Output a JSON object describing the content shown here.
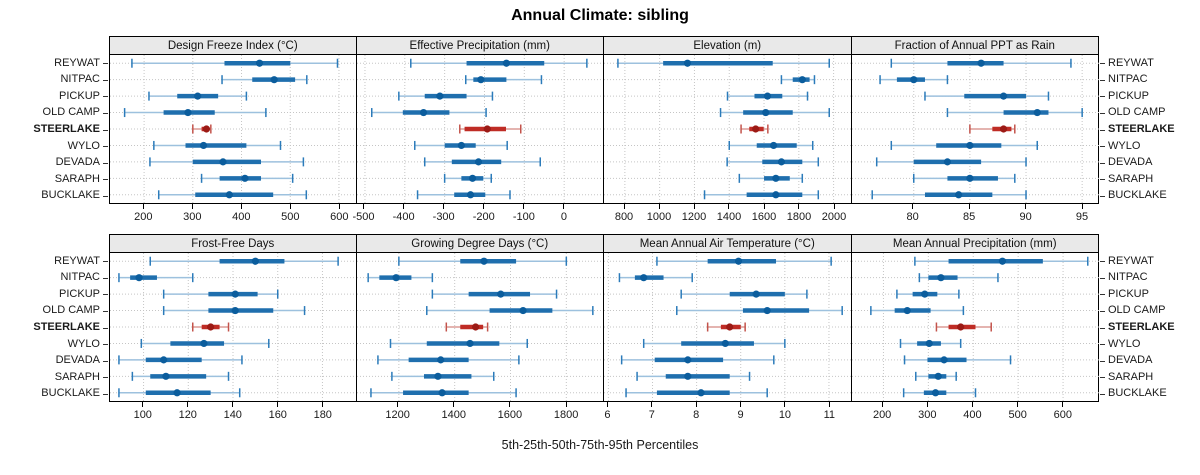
{
  "title": "Annual Climate: sibling",
  "caption": "5th-25th-50th-75th-95th Percentiles",
  "stations": [
    "REYWAT",
    "NITPAC",
    "PICKUP",
    "OLD CAMP",
    "STEERLAKE",
    "WYLO",
    "DEVADA",
    "SARAPH",
    "BUCKLAKE"
  ],
  "highlight_station": "STEERLAKE",
  "percentiles": [
    "5th",
    "25th",
    "50th",
    "75th",
    "95th"
  ],
  "colors": {
    "blue_line": "#9dc1de",
    "blue_cap": "#2b7bba",
    "blue_bar": "#1f6fae",
    "blue_dot": "#0b5d9d",
    "red_line": "#dc9b95",
    "red_cap": "#c3534b",
    "red_bar": "#bf2c25",
    "red_dot": "#9c1a15",
    "strip_bg": "#e9e9e9",
    "grid": "#c5c5c5",
    "border": "#000000"
  },
  "chart_data": [
    {
      "type": "interval",
      "title": "Design Freeze Index (°C)",
      "xlim": [
        130,
        635
      ],
      "ticks": [
        200,
        300,
        400,
        500,
        600
      ],
      "series": [
        {
          "station": "REYWAT",
          "values": [
            175,
            365,
            437,
            500,
            597
          ]
        },
        {
          "station": "NITPAC",
          "values": [
            360,
            422,
            467,
            510,
            534
          ]
        },
        {
          "station": "PICKUP",
          "values": [
            210,
            268,
            310,
            352,
            410
          ]
        },
        {
          "station": "OLD CAMP",
          "values": [
            160,
            240,
            290,
            345,
            450
          ]
        },
        {
          "station": "STEERLAKE",
          "values": [
            300,
            318,
            328,
            333,
            337
          ]
        },
        {
          "station": "WYLO",
          "values": [
            220,
            285,
            322,
            410,
            480
          ]
        },
        {
          "station": "DEVADA",
          "values": [
            212,
            300,
            362,
            440,
            527
          ]
        },
        {
          "station": "SARAPH",
          "values": [
            318,
            355,
            407,
            440,
            505
          ]
        },
        {
          "station": "BUCKLAKE",
          "values": [
            230,
            305,
            375,
            465,
            533
          ]
        }
      ]
    },
    {
      "type": "interval",
      "title": "Effective Precipitation (mm)",
      "xlim": [
        -520,
        100
      ],
      "ticks": [
        -500,
        -400,
        -300,
        -200,
        -100,
        0
      ],
      "series": [
        {
          "station": "REYWAT",
          "values": [
            -385,
            -245,
            -145,
            -50,
            57
          ]
        },
        {
          "station": "NITPAC",
          "values": [
            -247,
            -228,
            -209,
            -145,
            -57
          ]
        },
        {
          "station": "PICKUP",
          "values": [
            -415,
            -350,
            -312,
            -245,
            -180
          ]
        },
        {
          "station": "OLD CAMP",
          "values": [
            -483,
            -405,
            -353,
            -288,
            -196
          ]
        },
        {
          "station": "STEERLAKE",
          "values": [
            -262,
            -250,
            -193,
            -146,
            -109
          ]
        },
        {
          "station": "WYLO",
          "values": [
            -375,
            -300,
            -258,
            -222,
            -143
          ]
        },
        {
          "station": "DEVADA",
          "values": [
            -350,
            -282,
            -215,
            -158,
            -60
          ]
        },
        {
          "station": "SARAPH",
          "values": [
            -300,
            -258,
            -230,
            -203,
            -183
          ]
        },
        {
          "station": "BUCKLAKE",
          "values": [
            -368,
            -276,
            -235,
            -198,
            -136
          ]
        }
      ]
    },
    {
      "type": "interval",
      "title": "Elevation (m)",
      "xlim": [
        680,
        2100
      ],
      "ticks": [
        800,
        1000,
        1200,
        1400,
        1600,
        1800,
        2000
      ],
      "series": [
        {
          "station": "REYWAT",
          "values": [
            760,
            1020,
            1160,
            1650,
            1975
          ]
        },
        {
          "station": "NITPAC",
          "values": [
            1700,
            1765,
            1820,
            1862,
            1890
          ]
        },
        {
          "station": "PICKUP",
          "values": [
            1390,
            1545,
            1620,
            1705,
            1850
          ]
        },
        {
          "station": "OLD CAMP",
          "values": [
            1350,
            1480,
            1610,
            1765,
            1975
          ]
        },
        {
          "station": "STEERLAKE",
          "values": [
            1468,
            1515,
            1552,
            1598,
            1622
          ]
        },
        {
          "station": "WYLO",
          "values": [
            1400,
            1558,
            1655,
            1788,
            1880
          ]
        },
        {
          "station": "DEVADA",
          "values": [
            1388,
            1590,
            1700,
            1820,
            1912
          ]
        },
        {
          "station": "SARAPH",
          "values": [
            1458,
            1600,
            1668,
            1748,
            1820
          ]
        },
        {
          "station": "BUCKLAKE",
          "values": [
            1258,
            1500,
            1668,
            1820,
            1912
          ]
        }
      ]
    },
    {
      "type": "interval",
      "title": "Fraction of Annual PPT as Rain",
      "xlim": [
        74.5,
        96.5
      ],
      "ticks": [
        80,
        85,
        90,
        95
      ],
      "series": [
        {
          "station": "REYWAT",
          "values": [
            78,
            83,
            86,
            88,
            94
          ]
        },
        {
          "station": "NITPAC",
          "values": [
            77,
            78.5,
            80,
            81,
            83
          ]
        },
        {
          "station": "PICKUP",
          "values": [
            81,
            84.5,
            88,
            90,
            92
          ]
        },
        {
          "station": "OLD CAMP",
          "values": [
            83,
            88,
            91,
            92,
            95
          ]
        },
        {
          "station": "STEERLAKE",
          "values": [
            85,
            87,
            88,
            88.7,
            89
          ]
        },
        {
          "station": "WYLO",
          "values": [
            78,
            82,
            85,
            87.8,
            91
          ]
        },
        {
          "station": "DEVADA",
          "values": [
            76.7,
            80,
            83,
            86,
            90
          ]
        },
        {
          "station": "SARAPH",
          "values": [
            80,
            83,
            85,
            87.5,
            89
          ]
        },
        {
          "station": "BUCKLAKE",
          "values": [
            76.3,
            81,
            84,
            87,
            90
          ]
        }
      ]
    },
    {
      "type": "interval",
      "title": "Frost-Free Days",
      "xlim": [
        85,
        195
      ],
      "ticks": [
        100,
        120,
        140,
        160,
        180
      ],
      "series": [
        {
          "station": "REYWAT",
          "values": [
            103,
            134,
            150,
            163,
            187
          ]
        },
        {
          "station": "NITPAC",
          "values": [
            89,
            94,
            98,
            106,
            122
          ]
        },
        {
          "station": "PICKUP",
          "values": [
            109,
            129,
            141,
            151,
            160
          ]
        },
        {
          "station": "OLD CAMP",
          "values": [
            109,
            129,
            141,
            158,
            172
          ]
        },
        {
          "station": "STEERLAKE",
          "values": [
            122,
            126,
            130,
            134,
            138
          ]
        },
        {
          "station": "WYLO",
          "values": [
            99,
            112,
            127,
            136,
            156
          ]
        },
        {
          "station": "DEVADA",
          "values": [
            89,
            101,
            109,
            126,
            144
          ]
        },
        {
          "station": "SARAPH",
          "values": [
            95,
            103,
            110,
            128,
            138
          ]
        },
        {
          "station": "BUCKLAKE",
          "values": [
            89,
            101,
            115,
            130,
            143
          ]
        }
      ]
    },
    {
      "type": "interval",
      "title": "Growing Degree Days (°C)",
      "xlim": [
        1050,
        1935
      ],
      "ticks": [
        1200,
        1400,
        1600,
        1800
      ],
      "series": [
        {
          "station": "REYWAT",
          "values": [
            1200,
            1420,
            1505,
            1620,
            1800
          ]
        },
        {
          "station": "NITPAC",
          "values": [
            1090,
            1130,
            1190,
            1245,
            1320
          ]
        },
        {
          "station": "PICKUP",
          "values": [
            1320,
            1450,
            1565,
            1670,
            1765
          ]
        },
        {
          "station": "OLD CAMP",
          "values": [
            1300,
            1525,
            1645,
            1750,
            1895
          ]
        },
        {
          "station": "STEERLAKE",
          "values": [
            1370,
            1420,
            1475,
            1502,
            1518
          ]
        },
        {
          "station": "WYLO",
          "values": [
            1170,
            1300,
            1455,
            1560,
            1660
          ]
        },
        {
          "station": "DEVADA",
          "values": [
            1125,
            1235,
            1350,
            1450,
            1630
          ]
        },
        {
          "station": "SARAPH",
          "values": [
            1175,
            1290,
            1340,
            1460,
            1540
          ]
        },
        {
          "station": "BUCKLAKE",
          "values": [
            1100,
            1215,
            1355,
            1450,
            1620
          ]
        }
      ]
    },
    {
      "type": "interval",
      "title": "Mean Annual Air Temperature (°C)",
      "xlim": [
        5.9,
        11.5
      ],
      "ticks": [
        6,
        7,
        8,
        9,
        10,
        11
      ],
      "series": [
        {
          "station": "REYWAT",
          "values": [
            7.1,
            8.25,
            8.95,
            9.8,
            11.05
          ]
        },
        {
          "station": "NITPAC",
          "values": [
            6.25,
            6.6,
            6.8,
            7.25,
            7.9
          ]
        },
        {
          "station": "PICKUP",
          "values": [
            7.65,
            8.75,
            9.35,
            10.0,
            10.5
          ]
        },
        {
          "station": "OLD CAMP",
          "values": [
            7.55,
            9.05,
            9.6,
            10.55,
            11.3
          ]
        },
        {
          "station": "STEERLAKE",
          "values": [
            8.25,
            8.55,
            8.75,
            9.0,
            9.1
          ]
        },
        {
          "station": "WYLO",
          "values": [
            6.8,
            7.65,
            8.65,
            9.3,
            10.0
          ]
        },
        {
          "station": "DEVADA",
          "values": [
            6.3,
            7.05,
            7.8,
            8.6,
            9.75
          ]
        },
        {
          "station": "SARAPH",
          "values": [
            6.65,
            7.3,
            7.8,
            8.75,
            9.2
          ]
        },
        {
          "station": "BUCKLAKE",
          "values": [
            6.4,
            7.1,
            8.1,
            8.75,
            9.6
          ]
        }
      ]
    },
    {
      "type": "interval",
      "title": "Mean Annual Precipitation (mm)",
      "xlim": [
        130,
        680
      ],
      "ticks": [
        200,
        300,
        400,
        500,
        600
      ],
      "series": [
        {
          "station": "REYWAT",
          "values": [
            270,
            345,
            465,
            555,
            655
          ]
        },
        {
          "station": "NITPAC",
          "values": [
            280,
            300,
            328,
            365,
            455
          ]
        },
        {
          "station": "PICKUP",
          "values": [
            230,
            265,
            292,
            320,
            368
          ]
        },
        {
          "station": "OLD CAMP",
          "values": [
            172,
            225,
            253,
            305,
            378
          ]
        },
        {
          "station": "STEERLAKE",
          "values": [
            318,
            345,
            372,
            405,
            440
          ]
        },
        {
          "station": "WYLO",
          "values": [
            238,
            275,
            302,
            328,
            372
          ]
        },
        {
          "station": "DEVADA",
          "values": [
            247,
            298,
            335,
            385,
            483
          ]
        },
        {
          "station": "SARAPH",
          "values": [
            272,
            300,
            322,
            340,
            362
          ]
        },
        {
          "station": "BUCKLAKE",
          "values": [
            245,
            290,
            316,
            340,
            405
          ]
        }
      ]
    }
  ]
}
